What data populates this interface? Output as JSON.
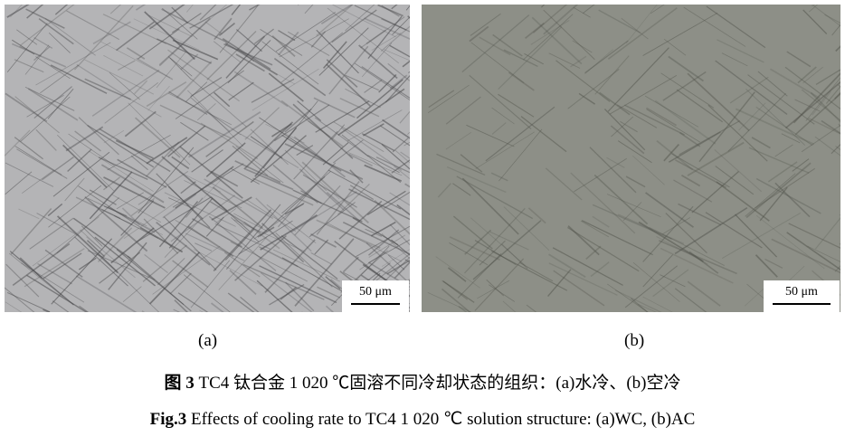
{
  "panels": [
    {
      "label": "(a)",
      "scale": "50 μm",
      "tone": "#b4b4b6"
    },
    {
      "label": "(b)",
      "scale": "50 μm",
      "tone": "#8d8f87"
    }
  ],
  "caption_cn": {
    "prefix": "图 3",
    "text": " TC4 钛合金 1 020 ℃固溶不同冷却状态的组织：(a)水冷、(b)空冷"
  },
  "caption_en": {
    "prefix": "Fig.3",
    "text": " Effects of cooling rate to TC4 1 020 ℃ solution structure: (a)WC, (b)AC"
  }
}
